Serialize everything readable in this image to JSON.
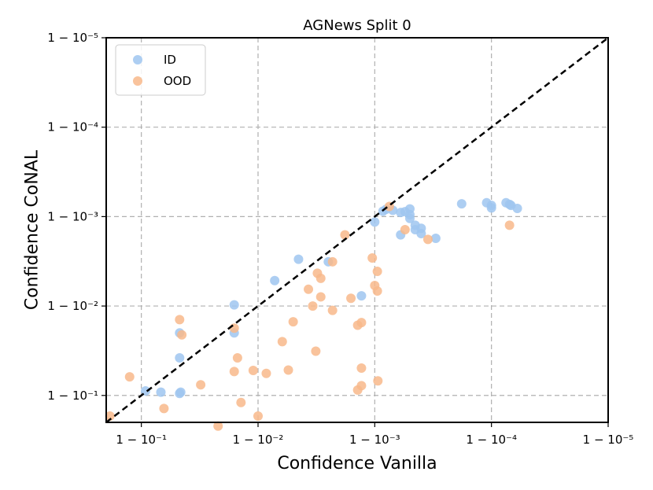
{
  "chart_data": {
    "type": "scatter",
    "title": "AGNews Split 0",
    "xlabel": "Confidence Vanilla",
    "ylabel": "Confidence CoNAL",
    "scale": "log of (1 - confidence), reversed",
    "xlim": [
      0.2,
      1e-05
    ],
    "ylim": [
      0.2,
      1e-05
    ],
    "x_ticks": [
      {
        "value": 0.1,
        "label": "1 − 10⁻¹"
      },
      {
        "value": 0.01,
        "label": "1 − 10⁻²"
      },
      {
        "value": 0.001,
        "label": "1 − 10⁻³"
      },
      {
        "value": 0.0001,
        "label": "1 − 10⁻⁴"
      },
      {
        "value": 1e-05,
        "label": "1 − 10⁻⁵"
      }
    ],
    "y_ticks": [
      {
        "value": 0.1,
        "label": "1 − 10⁻¹"
      },
      {
        "value": 0.01,
        "label": "1 − 10⁻²"
      },
      {
        "value": 0.001,
        "label": "1 − 10⁻³"
      },
      {
        "value": 0.0001,
        "label": "1 − 10⁻⁴"
      },
      {
        "value": 1e-05,
        "label": "1 − 10⁻⁵"
      }
    ],
    "grid": true,
    "diagonal": true,
    "legend_position": "top-left",
    "series": [
      {
        "name": "ID",
        "color": "#9fc5f0",
        "points": [
          [
            0.092,
            0.089
          ],
          [
            0.068,
            0.092
          ],
          [
            0.047,
            0.095
          ],
          [
            0.046,
            0.092
          ],
          [
            0.047,
            0.038
          ],
          [
            0.047,
            0.02
          ],
          [
            0.016,
            0.02
          ],
          [
            0.016,
            0.0097
          ],
          [
            0.0072,
            0.0052
          ],
          [
            0.0045,
            0.003
          ],
          [
            0.0025,
            0.0032
          ],
          [
            0.0013,
            0.0077
          ],
          [
            0.001,
            0.00115
          ],
          [
            0.00085,
            0.00087
          ],
          [
            0.0008,
            0.00083
          ],
          [
            0.0007,
            0.00085
          ],
          [
            0.0006,
            0.0009
          ],
          [
            0.0006,
            0.0016
          ],
          [
            0.00055,
            0.00088
          ],
          [
            0.0005,
            0.00082
          ],
          [
            0.0005,
            0.00095
          ],
          [
            0.0005,
            0.00105
          ],
          [
            0.00045,
            0.00125
          ],
          [
            0.00045,
            0.0014
          ],
          [
            0.0004,
            0.00155
          ],
          [
            0.0004,
            0.00135
          ],
          [
            0.0003,
            0.00175
          ],
          [
            0.00018,
            0.00072
          ],
          [
            0.00011,
            0.0007
          ],
          [
            0.0001,
            0.00075
          ],
          [
            0.0001,
            0.0008
          ],
          [
            7.5e-05,
            0.0007
          ],
          [
            7e-05,
            0.00073
          ],
          [
            6.8e-05,
            0.00075
          ],
          [
            6e-05,
            0.00081
          ]
        ]
      },
      {
        "name": "OOD",
        "color": "#f8b88b",
        "points": [
          [
            0.186,
            0.17
          ],
          [
            0.126,
            0.062
          ],
          [
            0.064,
            0.14
          ],
          [
            0.047,
            0.0142
          ],
          [
            0.045,
            0.021
          ],
          [
            0.031,
            0.076
          ],
          [
            0.022,
            0.22
          ],
          [
            0.016,
            0.054
          ],
          [
            0.016,
            0.0177
          ],
          [
            0.015,
            0.038
          ],
          [
            0.014,
            0.12
          ],
          [
            0.011,
            0.0525
          ],
          [
            0.01,
            0.17
          ],
          [
            0.0085,
            0.0567
          ],
          [
            0.0062,
            0.025
          ],
          [
            0.0055,
            0.052
          ],
          [
            0.005,
            0.015
          ],
          [
            0.0037,
            0.0065
          ],
          [
            0.0034,
            0.01
          ],
          [
            0.0032,
            0.032
          ],
          [
            0.0031,
            0.0043
          ],
          [
            0.0029,
            0.0079
          ],
          [
            0.0029,
            0.0049
          ],
          [
            0.0023,
            0.0112
          ],
          [
            0.0023,
            0.0032
          ],
          [
            0.0018,
            0.0016
          ],
          [
            0.0016,
            0.0082
          ],
          [
            0.0014,
            0.0164
          ],
          [
            0.0014,
            0.087
          ],
          [
            0.0013,
            0.0153
          ],
          [
            0.0013,
            0.0495
          ],
          [
            0.0013,
            0.0777
          ],
          [
            0.00105,
            0.0029
          ],
          [
            0.001,
            0.0059
          ],
          [
            0.00095,
            0.0041
          ],
          [
            0.00095,
            0.0068
          ],
          [
            0.00075,
            0.00077
          ],
          [
            0.00055,
            0.0014
          ],
          [
            0.00035,
            0.0018
          ],
          [
            7e-05,
            0.00125
          ],
          [
            0.00094,
            0.0687
          ]
        ]
      }
    ]
  }
}
